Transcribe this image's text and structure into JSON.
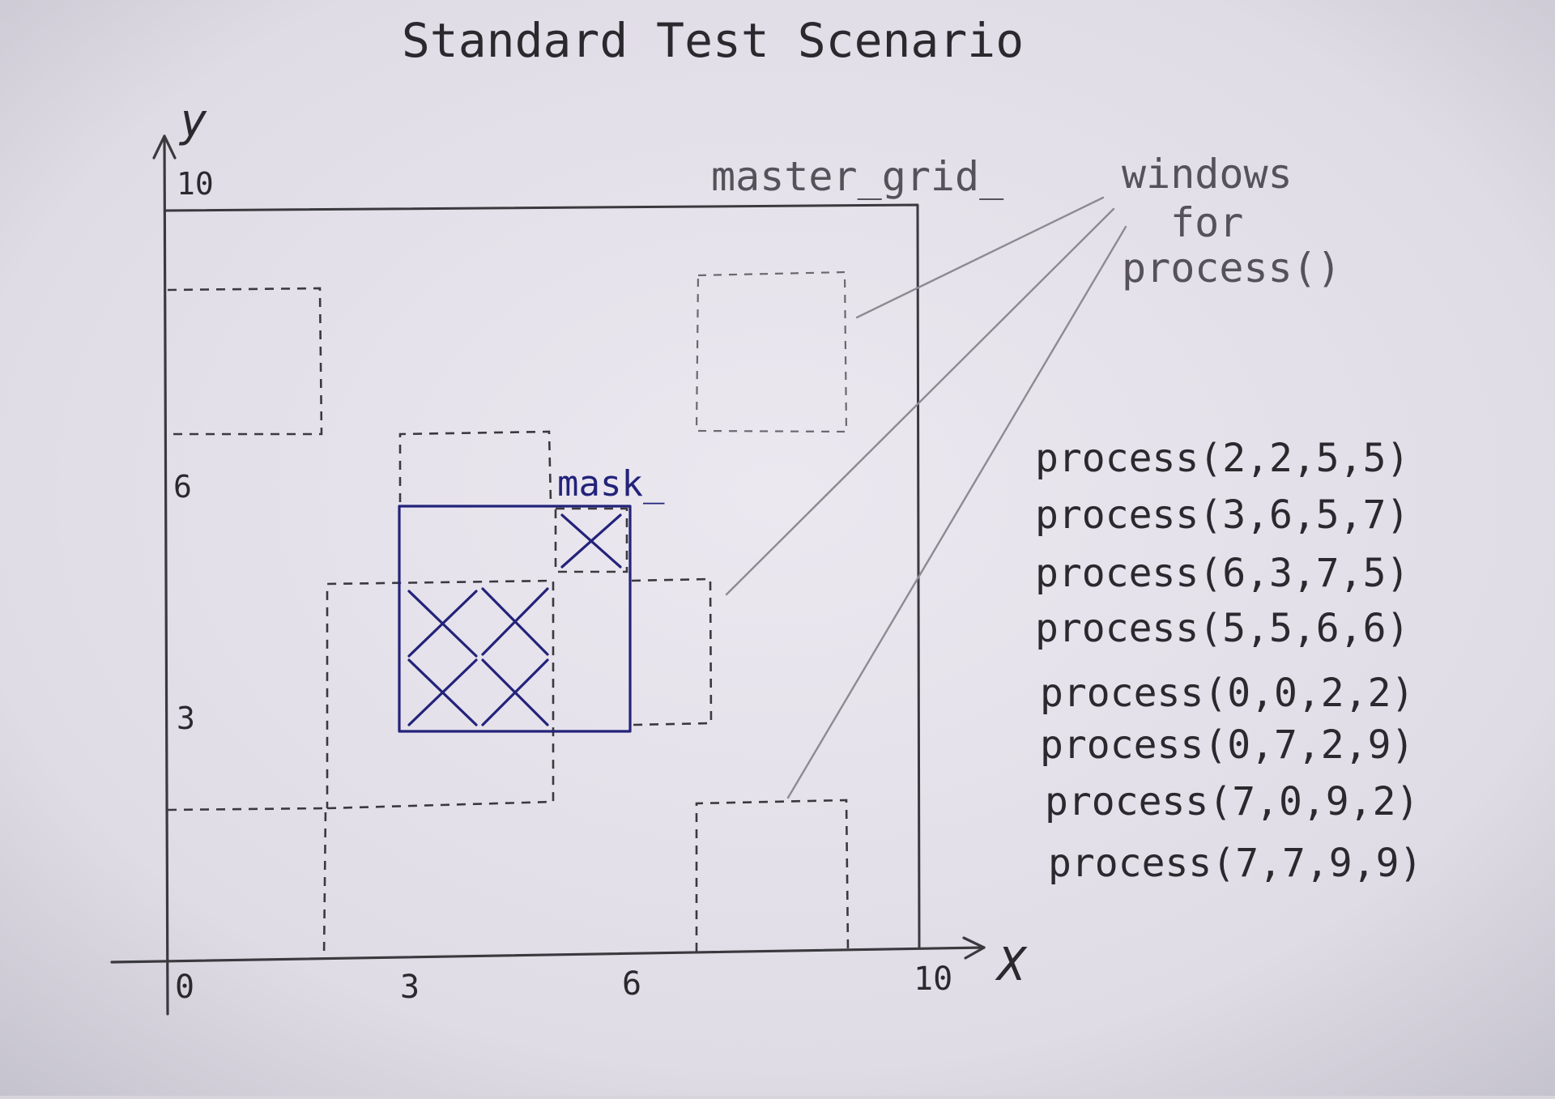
{
  "title": "Standard Test Scenario",
  "axes": {
    "x_label": "X",
    "y_label": "y",
    "x_ticks": [
      "0",
      "3",
      "6",
      "10"
    ],
    "y_ticks": [
      "3",
      "6",
      "10"
    ]
  },
  "labels": {
    "master_grid": "master_grid_",
    "mask": "mask_",
    "windows_lines": [
      "windows",
      "for",
      "process()"
    ]
  },
  "process_calls": [
    "process(2,2,5,5)",
    "process(3,6,5,7)",
    "process(6,3,7,5)",
    "process(5,5,6,6)",
    "process(0,0,2,2)",
    "process(0,7,2,9)",
    "process(7,0,9,2)",
    "process(7,7,9,9)"
  ],
  "colors": {
    "paper": "#e6e2ea",
    "pencil": "#3a3a3e",
    "ink": "#23237a"
  }
}
